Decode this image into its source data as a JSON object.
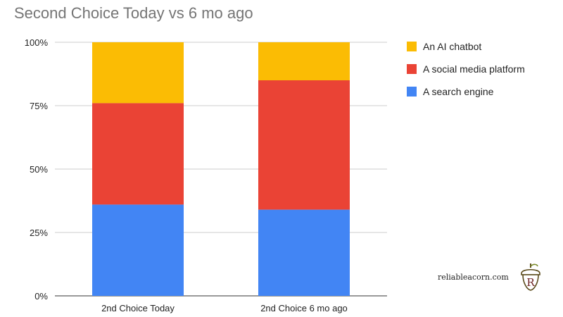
{
  "title": "Second Choice Today vs 6 mo ago",
  "chart_data": {
    "type": "bar",
    "stacked": true,
    "normalized": true,
    "categories": [
      "2nd Choice Today",
      "2nd Choice 6 mo ago"
    ],
    "series": [
      {
        "name": "A search engine",
        "color": "#4285f4",
        "values": [
          36,
          34
        ]
      },
      {
        "name": "A social media platform",
        "color": "#ea4335",
        "values": [
          40,
          51
        ]
      },
      {
        "name": "An AI chatbot",
        "color": "#fbbc04",
        "values": [
          24,
          15
        ]
      }
    ],
    "yticks": [
      "0%",
      "25%",
      "50%",
      "75%",
      "100%"
    ],
    "ylim": [
      0,
      100
    ],
    "grid": true,
    "legend_position": "right"
  },
  "legend": [
    {
      "label": "An AI chatbot",
      "color": "#fbbc04"
    },
    {
      "label": "A social media platform",
      "color": "#ea4335"
    },
    {
      "label": "A search engine",
      "color": "#4285f4"
    }
  ],
  "watermark": {
    "text": "reliableacorn.com",
    "logo_letter": "R"
  }
}
